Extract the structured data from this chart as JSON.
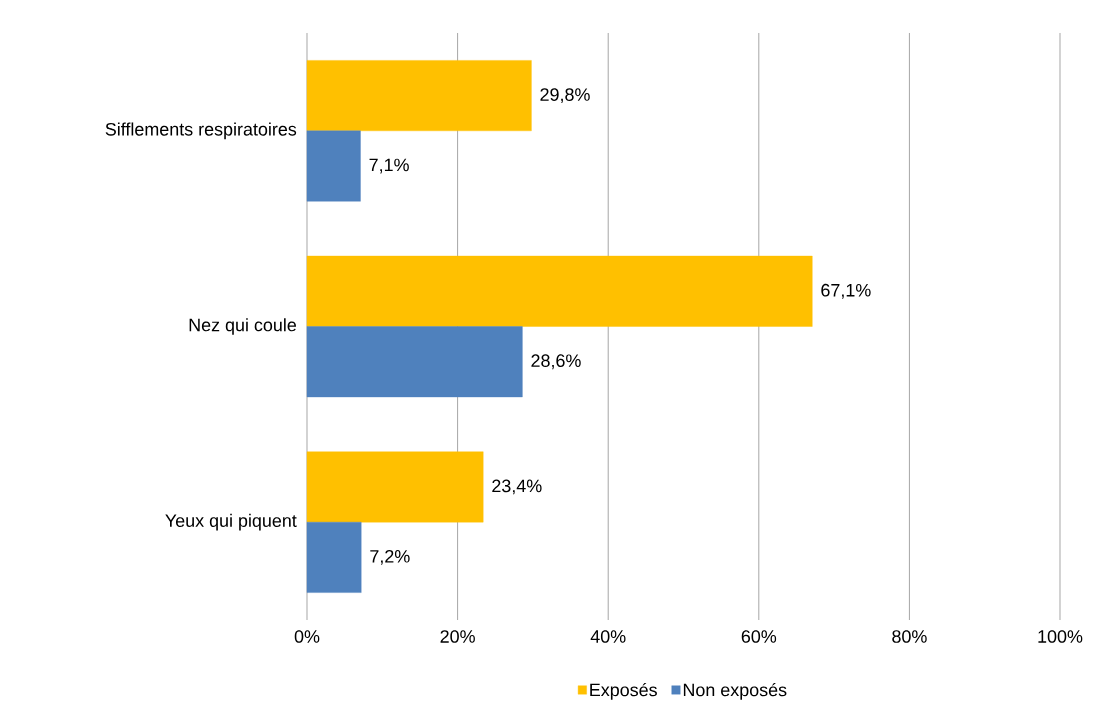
{
  "chart_data": {
    "type": "bar",
    "orientation": "horizontal",
    "categories": [
      "Sifflements respiratoires",
      "Nez qui coule",
      "Yeux qui piquent"
    ],
    "series": [
      {
        "name": "Exposés",
        "color": "#ffc000",
        "values": [
          29.8,
          67.1,
          23.4
        ],
        "value_labels": [
          "29,8%",
          "67,1%",
          "23,4%"
        ]
      },
      {
        "name": "Non exposés",
        "color": "#4f81bd",
        "values": [
          7.1,
          28.6,
          7.2
        ],
        "value_labels": [
          "7,1%",
          "28,6%",
          "7,2%"
        ]
      }
    ],
    "xlim": [
      0,
      100
    ],
    "xticks": [
      {
        "value": 0,
        "label": "0%"
      },
      {
        "value": 20,
        "label": "20%"
      },
      {
        "value": 40,
        "label": "40%"
      },
      {
        "value": 60,
        "label": "60%"
      },
      {
        "value": 80,
        "label": "80%"
      },
      {
        "value": 100,
        "label": "100%"
      }
    ],
    "grid": "x",
    "legend": "bottom"
  }
}
